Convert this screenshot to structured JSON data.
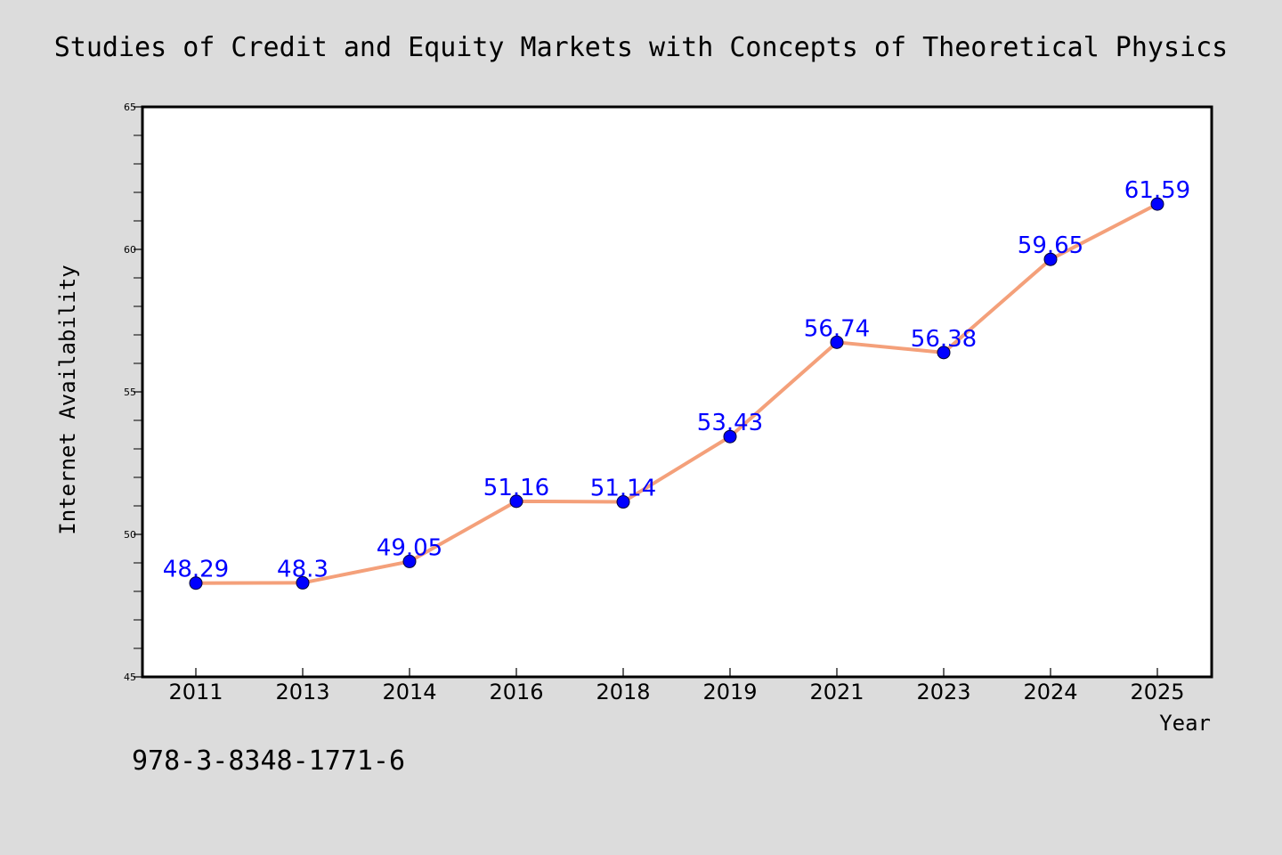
{
  "chart_data": {
    "type": "line",
    "title": "Studies of Credit and Equity Markets with Concepts of Theoretical Physics",
    "xlabel": "Year",
    "ylabel": "Internet Availability",
    "categories": [
      "2011",
      "2013",
      "2014",
      "2016",
      "2018",
      "2019",
      "2021",
      "2023",
      "2024",
      "2025"
    ],
    "series": [
      {
        "values": [
          48.29,
          48.3,
          49.05,
          51.16,
          51.14,
          53.43,
          56.74,
          56.38,
          59.65,
          61.59
        ],
        "labels": [
          "48.29",
          "48.3",
          "49.05",
          "51.16",
          "51.14",
          "53.43",
          "56.74",
          "56.38",
          "59.65",
          "61.59"
        ]
      }
    ],
    "ylim": [
      45,
      65
    ],
    "yticks": [
      "45",
      "50",
      "55",
      "60",
      "65"
    ],
    "grid": false,
    "colors": {
      "line": "#f4a07a",
      "marker": "#0000ff",
      "label": "#0000ff",
      "background": "#dcdcdc",
      "plot_background": "#ffffff"
    }
  },
  "footnote": "978-3-8348-1771-6"
}
